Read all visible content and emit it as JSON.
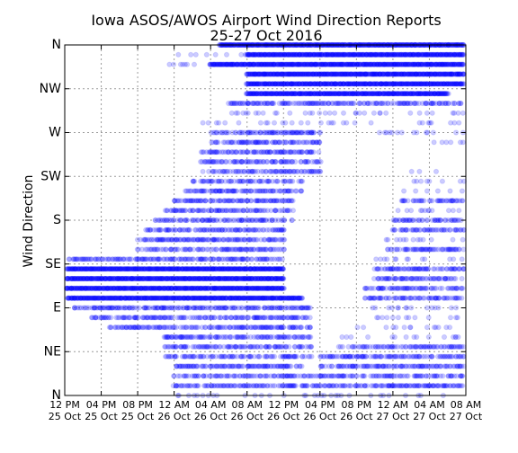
{
  "chart_data": {
    "type": "scatter",
    "title": "Iowa ASOS/AWOS Airport Wind Direction Reports",
    "subtitle": "25-27 Oct 2016",
    "ylabel": "Wind Direction",
    "xlabel": "",
    "x_range": [
      "2016-10-25T12:00",
      "2016-10-27T08:00"
    ],
    "y_range": [
      0,
      360
    ],
    "y_ticks": [
      {
        "value": 0,
        "label": "N"
      },
      {
        "value": 45,
        "label": "NE"
      },
      {
        "value": 90,
        "label": "E"
      },
      {
        "value": 135,
        "label": "SE"
      },
      {
        "value": 180,
        "label": "S"
      },
      {
        "value": 225,
        "label": "SW"
      },
      {
        "value": 270,
        "label": "W"
      },
      {
        "value": 315,
        "label": "NW"
      },
      {
        "value": 360,
        "label": "N"
      }
    ],
    "x_ticks": [
      {
        "value": "2016-10-25T12:00",
        "line1": "12 PM",
        "line2": "25 Oct"
      },
      {
        "value": "2016-10-25T16:00",
        "line1": "04 PM",
        "line2": "25 Oct"
      },
      {
        "value": "2016-10-25T20:00",
        "line1": "08 PM",
        "line2": "25 Oct"
      },
      {
        "value": "2016-10-26T00:00",
        "line1": "12 AM",
        "line2": "26 Oct"
      },
      {
        "value": "2016-10-26T04:00",
        "line1": "04 AM",
        "line2": "26 Oct"
      },
      {
        "value": "2016-10-26T08:00",
        "line1": "08 AM",
        "line2": "26 Oct"
      },
      {
        "value": "2016-10-26T12:00",
        "line1": "12 PM",
        "line2": "26 Oct"
      },
      {
        "value": "2016-10-26T16:00",
        "line1": "04 PM",
        "line2": "26 Oct"
      },
      {
        "value": "2016-10-26T20:00",
        "line1": "08 PM",
        "line2": "26 Oct"
      },
      {
        "value": "2016-10-27T00:00",
        "line1": "12 AM",
        "line2": "27 Oct"
      },
      {
        "value": "2016-10-27T04:00",
        "line1": "04 AM",
        "line2": "27 Oct"
      },
      {
        "value": "2016-10-27T08:00",
        "line1": "08 AM",
        "line2": "27 Oct"
      }
    ],
    "grid": true,
    "marker_color": "#0000ff",
    "marker_opacity": 0.2,
    "series": [
      {
        "points_by_direction": [
          {
            "direction": 360,
            "segments": [
              [
                "2016-10-26T05:00",
                "2016-10-27T08:00",
                "dense"
              ]
            ]
          },
          {
            "direction": 350,
            "segments": [
              [
                "2016-10-26T08:00",
                "2016-10-27T08:00",
                "dense"
              ],
              [
                "2016-10-26T00:00",
                "2016-10-26T08:00",
                "sparse"
              ]
            ]
          },
          {
            "direction": 340,
            "segments": [
              [
                "2016-10-26T04:00",
                "2016-10-27T08:00",
                "dense"
              ],
              [
                "2016-10-25T23:00",
                "2016-10-26T04:00",
                "sparse"
              ]
            ]
          },
          {
            "direction": 330,
            "segments": [
              [
                "2016-10-26T08:00",
                "2016-10-27T08:00",
                "dense"
              ]
            ]
          },
          {
            "direction": 320,
            "segments": [
              [
                "2016-10-26T08:00",
                "2016-10-27T08:00",
                "dense"
              ]
            ]
          },
          {
            "direction": 310,
            "segments": [
              [
                "2016-10-26T08:00",
                "2016-10-27T06:00",
                "dense"
              ]
            ]
          },
          {
            "direction": 300,
            "segments": [
              [
                "2016-10-26T06:00",
                "2016-10-27T08:00",
                "medium"
              ]
            ]
          },
          {
            "direction": 290,
            "segments": [
              [
                "2016-10-26T06:00",
                "2016-10-27T08:00",
                "sparse"
              ]
            ]
          },
          {
            "direction": 280,
            "segments": [
              [
                "2016-10-26T03:00",
                "2016-10-27T08:00",
                "sparse"
              ]
            ]
          },
          {
            "direction": 270,
            "segments": [
              [
                "2016-10-26T04:00",
                "2016-10-26T16:00",
                "medium"
              ],
              [
                "2016-10-26T22:00",
                "2016-10-27T08:00",
                "sparse"
              ]
            ]
          },
          {
            "direction": 260,
            "segments": [
              [
                "2016-10-26T04:00",
                "2016-10-26T16:00",
                "medium"
              ],
              [
                "2016-10-27T02:00",
                "2016-10-27T08:00",
                "sparse"
              ]
            ]
          },
          {
            "direction": 250,
            "segments": [
              [
                "2016-10-26T03:00",
                "2016-10-26T16:00",
                "medium"
              ]
            ]
          },
          {
            "direction": 240,
            "segments": [
              [
                "2016-10-26T03:00",
                "2016-10-26T16:00",
                "medium"
              ]
            ]
          },
          {
            "direction": 230,
            "segments": [
              [
                "2016-10-26T03:00",
                "2016-10-26T16:00",
                "medium"
              ],
              [
                "2016-10-27T02:00",
                "2016-10-27T06:00",
                "sparse"
              ]
            ]
          },
          {
            "direction": 220,
            "segments": [
              [
                "2016-10-26T02:00",
                "2016-10-26T14:00",
                "medium"
              ],
              [
                "2016-10-27T02:00",
                "2016-10-27T08:00",
                "sparse"
              ]
            ]
          },
          {
            "direction": 210,
            "segments": [
              [
                "2016-10-26T01:00",
                "2016-10-26T14:00",
                "medium"
              ],
              [
                "2016-10-27T01:00",
                "2016-10-27T08:00",
                "sparse"
              ]
            ]
          },
          {
            "direction": 200,
            "segments": [
              [
                "2016-10-26T00:00",
                "2016-10-26T13:00",
                "medium"
              ],
              [
                "2016-10-27T01:00",
                "2016-10-27T08:00",
                "medium"
              ]
            ]
          },
          {
            "direction": 190,
            "segments": [
              [
                "2016-10-25T23:00",
                "2016-10-26T13:00",
                "medium"
              ],
              [
                "2016-10-27T00:00",
                "2016-10-27T08:00",
                "sparse"
              ]
            ]
          },
          {
            "direction": 180,
            "segments": [
              [
                "2016-10-25T22:00",
                "2016-10-26T13:00",
                "medium"
              ],
              [
                "2016-10-27T00:00",
                "2016-10-27T08:00",
                "medium"
              ]
            ]
          },
          {
            "direction": 170,
            "segments": [
              [
                "2016-10-25T21:00",
                "2016-10-26T12:00",
                "medium"
              ],
              [
                "2016-10-27T00:00",
                "2016-10-27T08:00",
                "medium"
              ]
            ]
          },
          {
            "direction": 160,
            "segments": [
              [
                "2016-10-25T20:00",
                "2016-10-26T12:00",
                "medium"
              ],
              [
                "2016-10-26T23:00",
                "2016-10-27T08:00",
                "sparse"
              ]
            ]
          },
          {
            "direction": 150,
            "segments": [
              [
                "2016-10-25T20:00",
                "2016-10-26T12:00",
                "medium"
              ],
              [
                "2016-10-26T23:00",
                "2016-10-27T08:00",
                "medium"
              ]
            ]
          },
          {
            "direction": 140,
            "segments": [
              [
                "2016-10-25T12:00",
                "2016-10-26T12:00",
                "medium"
              ],
              [
                "2016-10-26T22:00",
                "2016-10-27T08:00",
                "sparse"
              ]
            ]
          },
          {
            "direction": 130,
            "segments": [
              [
                "2016-10-25T12:00",
                "2016-10-26T12:00",
                "dense"
              ],
              [
                "2016-10-26T22:00",
                "2016-10-27T08:00",
                "medium"
              ]
            ]
          },
          {
            "direction": 120,
            "segments": [
              [
                "2016-10-25T12:00",
                "2016-10-26T12:00",
                "dense"
              ],
              [
                "2016-10-26T22:00",
                "2016-10-27T08:00",
                "medium"
              ]
            ]
          },
          {
            "direction": 110,
            "segments": [
              [
                "2016-10-25T12:00",
                "2016-10-26T12:00",
                "dense"
              ],
              [
                "2016-10-26T21:00",
                "2016-10-27T08:00",
                "medium"
              ]
            ]
          },
          {
            "direction": 100,
            "segments": [
              [
                "2016-10-25T12:00",
                "2016-10-26T14:00",
                "dense"
              ],
              [
                "2016-10-26T21:00",
                "2016-10-27T08:00",
                "medium"
              ]
            ]
          },
          {
            "direction": 90,
            "segments": [
              [
                "2016-10-25T13:00",
                "2016-10-26T15:00",
                "medium"
              ],
              [
                "2016-10-26T21:00",
                "2016-10-27T08:00",
                "sparse"
              ]
            ]
          },
          {
            "direction": 80,
            "segments": [
              [
                "2016-10-25T15:00",
                "2016-10-26T15:00",
                "medium"
              ],
              [
                "2016-10-26T20:00",
                "2016-10-27T08:00",
                "sparse"
              ]
            ]
          },
          {
            "direction": 70,
            "segments": [
              [
                "2016-10-25T17:00",
                "2016-10-26T15:00",
                "medium"
              ],
              [
                "2016-10-26T20:00",
                "2016-10-27T08:00",
                "sparse"
              ]
            ]
          },
          {
            "direction": 60,
            "segments": [
              [
                "2016-10-25T23:00",
                "2016-10-26T15:00",
                "medium"
              ],
              [
                "2016-10-26T18:00",
                "2016-10-27T08:00",
                "sparse"
              ]
            ]
          },
          {
            "direction": 50,
            "segments": [
              [
                "2016-10-25T23:00",
                "2016-10-26T15:00",
                "medium"
              ],
              [
                "2016-10-26T18:00",
                "2016-10-27T08:00",
                "medium"
              ]
            ]
          },
          {
            "direction": 40,
            "segments": [
              [
                "2016-10-25T23:00",
                "2016-10-26T15:00",
                "medium"
              ],
              [
                "2016-10-26T16:00",
                "2016-10-27T08:00",
                "medium"
              ]
            ]
          },
          {
            "direction": 30,
            "segments": [
              [
                "2016-10-26T00:00",
                "2016-10-26T14:00",
                "medium"
              ],
              [
                "2016-10-26T16:00",
                "2016-10-27T08:00",
                "medium"
              ]
            ]
          },
          {
            "direction": 20,
            "segments": [
              [
                "2016-10-26T00:00",
                "2016-10-27T08:00",
                "medium"
              ]
            ]
          },
          {
            "direction": 10,
            "segments": [
              [
                "2016-10-26T00:00",
                "2016-10-27T08:00",
                "medium"
              ]
            ]
          },
          {
            "direction": 0,
            "segments": [
              [
                "2016-10-26T00:00",
                "2016-10-27T08:00",
                "sparse"
              ]
            ]
          }
        ]
      }
    ]
  }
}
